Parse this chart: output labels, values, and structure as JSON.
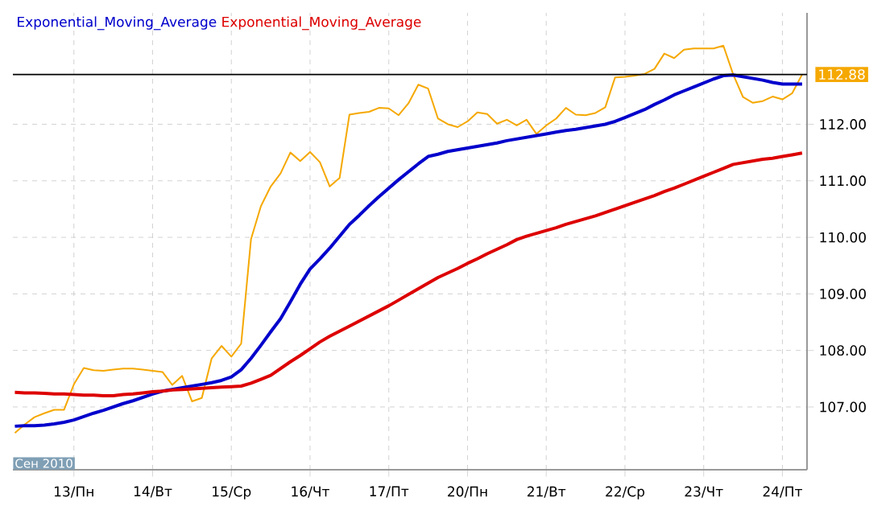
{
  "chart_data": {
    "type": "line",
    "categories": [
      null,
      null,
      null,
      null,
      null,
      null,
      "13/Пн",
      null,
      null,
      null,
      null,
      null,
      null,
      null,
      "14/Вт",
      null,
      null,
      null,
      null,
      null,
      null,
      null,
      "15/Ср",
      null,
      null,
      null,
      null,
      null,
      null,
      null,
      "16/Чт",
      null,
      null,
      null,
      null,
      null,
      null,
      null,
      "17/Пт",
      null,
      null,
      null,
      null,
      null,
      null,
      null,
      "20/Пн",
      null,
      null,
      null,
      null,
      null,
      null,
      null,
      "21/Вт",
      null,
      null,
      null,
      null,
      null,
      null,
      null,
      "22/Ср",
      null,
      null,
      null,
      null,
      null,
      null,
      null,
      "23/Чт",
      null,
      null,
      null,
      null,
      null,
      null,
      null,
      "24/Пт",
      null,
      null
    ],
    "series": [
      {
        "color": "#f5a800",
        "values": [
          106.54,
          106.69,
          106.82,
          106.89,
          106.95,
          106.95,
          107.4,
          107.69,
          107.65,
          107.64,
          107.66,
          107.68,
          107.68,
          107.66,
          107.64,
          107.62,
          107.39,
          107.55,
          107.1,
          107.16,
          107.86,
          108.08,
          107.89,
          108.12,
          109.97,
          110.55,
          110.9,
          111.13,
          111.5,
          111.35,
          111.51,
          111.33,
          110.9,
          111.05,
          112.17,
          112.2,
          112.22,
          112.29,
          112.28,
          112.16,
          112.37,
          112.7,
          112.63,
          112.1,
          112.0,
          111.95,
          112.05,
          112.21,
          112.18,
          112.01,
          112.08,
          111.98,
          112.08,
          111.83,
          111.98,
          112.1,
          112.29,
          112.17,
          112.16,
          112.2,
          112.3,
          112.83,
          112.84,
          112.86,
          112.89,
          112.98,
          113.25,
          113.17,
          113.32,
          113.34,
          113.34,
          113.34,
          113.39,
          112.88,
          112.48,
          112.38,
          112.41,
          112.49,
          112.44,
          112.55,
          112.88
        ]
      },
      {
        "name": "Exponential_Moving_Average",
        "color": "#0000cc",
        "values": [
          106.66,
          106.67,
          106.67,
          106.68,
          106.7,
          106.73,
          106.77,
          106.83,
          106.89,
          106.94,
          107.0,
          107.06,
          107.11,
          107.17,
          107.23,
          107.28,
          107.31,
          107.34,
          107.37,
          107.4,
          107.43,
          107.47,
          107.53,
          107.66,
          107.86,
          108.09,
          108.33,
          108.56,
          108.86,
          109.17,
          109.44,
          109.62,
          109.81,
          110.02,
          110.23,
          110.39,
          110.56,
          110.72,
          110.87,
          111.02,
          111.16,
          111.3,
          111.43,
          111.47,
          111.52,
          111.55,
          111.58,
          111.61,
          111.64,
          111.67,
          111.71,
          111.74,
          111.77,
          111.8,
          111.83,
          111.86,
          111.89,
          111.91,
          111.94,
          111.97,
          112.0,
          112.05,
          112.12,
          112.19,
          112.26,
          112.35,
          112.43,
          112.52,
          112.59,
          112.66,
          112.73,
          112.8,
          112.86,
          112.87,
          112.84,
          112.81,
          112.78,
          112.74,
          112.71,
          112.71,
          112.71
        ]
      },
      {
        "name": "Exponential_Moving_Average",
        "color": "#dd0000",
        "values": [
          107.26,
          107.25,
          107.25,
          107.24,
          107.23,
          107.23,
          107.22,
          107.21,
          107.21,
          107.2,
          107.2,
          107.22,
          107.23,
          107.25,
          107.27,
          107.28,
          107.3,
          107.31,
          107.32,
          107.33,
          107.34,
          107.35,
          107.36,
          107.37,
          107.42,
          107.49,
          107.56,
          107.68,
          107.8,
          107.91,
          108.03,
          108.15,
          108.25,
          108.34,
          108.43,
          108.52,
          108.61,
          108.7,
          108.79,
          108.89,
          108.99,
          109.09,
          109.19,
          109.29,
          109.37,
          109.45,
          109.54,
          109.62,
          109.71,
          109.79,
          109.87,
          109.96,
          110.02,
          110.07,
          110.12,
          110.17,
          110.23,
          110.28,
          110.33,
          110.38,
          110.44,
          110.5,
          110.56,
          110.62,
          110.68,
          110.74,
          110.81,
          110.87,
          110.94,
          111.01,
          111.08,
          111.15,
          111.22,
          111.29,
          111.32,
          111.35,
          111.38,
          111.4,
          111.43,
          111.46,
          111.49
        ]
      }
    ],
    "ylim": [
      105.89,
      113.97
    ],
    "yticks": [
      {
        "value": 107,
        "label": "107.00"
      },
      {
        "value": 108,
        "label": "108.00"
      },
      {
        "value": 109,
        "label": "109.00"
      },
      {
        "value": 110,
        "label": "110.00"
      },
      {
        "value": 111,
        "label": "111.00"
      },
      {
        "value": 112,
        "label": "112.00"
      }
    ],
    "ref_lines": [
      {
        "axis": "y",
        "value": 112.88,
        "label": "112.88",
        "color": "#000000"
      }
    ],
    "annotations": [
      "Сен 2010"
    ],
    "grid": true,
    "legend": "top left"
  }
}
